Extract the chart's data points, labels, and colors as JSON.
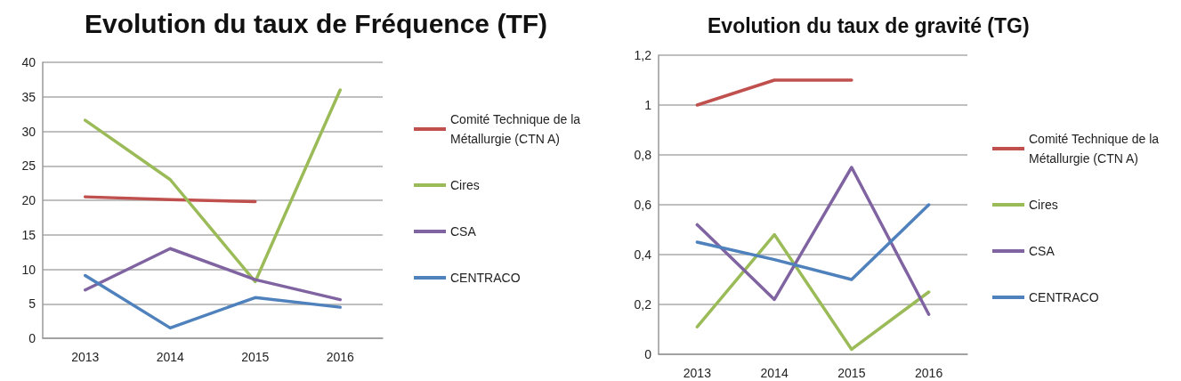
{
  "chart_data": [
    {
      "type": "line",
      "title": "Evolution du taux de Fréquence (TF)",
      "categories": [
        "2013",
        "2014",
        "2015",
        "2016"
      ],
      "ylim": [
        0,
        40
      ],
      "yticks": [
        0,
        5,
        10,
        15,
        20,
        25,
        30,
        35,
        40
      ],
      "grid": "y",
      "legend": "right",
      "marker": "none",
      "line_style": "solid",
      "series": [
        {
          "name": "Comité Technique de la Métallurgie (CTN A)",
          "color": "#c0504d",
          "values": [
            20.5,
            20.1,
            19.8,
            null
          ]
        },
        {
          "name": "Cires",
          "color": "#9bbb59",
          "values": [
            31.6,
            23,
            8.2,
            36
          ]
        },
        {
          "name": "CSA",
          "color": "#8064a2",
          "values": [
            7,
            13,
            8.5,
            5.6
          ]
        },
        {
          "name": "CENTRACO",
          "color": "#4f81bd",
          "values": [
            9.1,
            1.5,
            5.9,
            4.5
          ]
        }
      ]
    },
    {
      "type": "line",
      "title": "Evolution du taux de gravité (TG)",
      "categories": [
        "2013",
        "2014",
        "2015",
        "2016"
      ],
      "ylim": [
        0,
        1.2
      ],
      "yticks": [
        0,
        {
          "value": 0.2,
          "label": "0,2"
        },
        {
          "value": 0.4,
          "label": "0,4"
        },
        {
          "value": 0.6,
          "label": "0,6"
        },
        {
          "value": 0.8,
          "label": "0,8"
        },
        1,
        {
          "value": 1.2,
          "label": "1,2"
        }
      ],
      "grid": "y",
      "legend": "right",
      "marker": "none",
      "line_style": "solid",
      "series": [
        {
          "name": "Comité Technique de la Métallurgie (CTN A)",
          "color": "#c0504d",
          "values": [
            1,
            1.1,
            1.1,
            null
          ]
        },
        {
          "name": "Cires",
          "color": "#9bbb59",
          "values": [
            0.11,
            0.48,
            0.02,
            0.25
          ]
        },
        {
          "name": "CSA",
          "color": "#8064a2",
          "values": [
            0.52,
            0.22,
            0.75,
            0.16
          ]
        },
        {
          "name": "CENTRACO",
          "color": "#4f81bd",
          "values": [
            0.45,
            0.38,
            0.3,
            0.6
          ]
        }
      ]
    }
  ]
}
